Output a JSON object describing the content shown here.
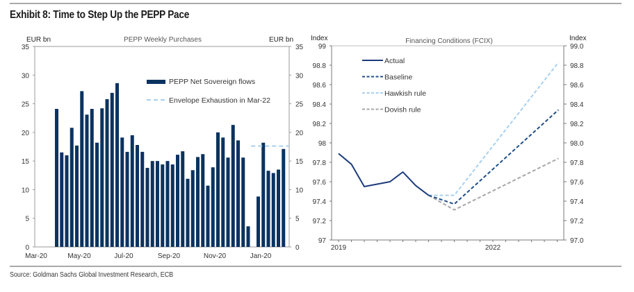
{
  "exhibit": {
    "title": "Exhibit 8: Time to Step Up the PEPP Pace",
    "source": "Source: Goldman Sachs Global Investment Research, ECB"
  },
  "chart_data": [
    {
      "type": "bar",
      "title": "PEPP Weekly Purchases",
      "ylabel_left": "EUR bn",
      "ylabel_right": "EUR bn",
      "ylim": [
        0,
        35
      ],
      "yticks": [
        "0",
        "5",
        "10",
        "15",
        "20",
        "25",
        "30",
        "35"
      ],
      "yticks_right": [
        "0",
        "5",
        "10",
        "15",
        "20",
        "25",
        "30",
        "35"
      ],
      "xtick_labels": [
        "Mar-20",
        "May-20",
        "Jul-20",
        "Sep-20",
        "Nov-20",
        "Jan-20"
      ],
      "grid": false,
      "legend_position": "top-center",
      "series": [
        {
          "name": "PEPP Net Sovereign flows",
          "color": "#0b3360",
          "values": [
            24.1,
            16.5,
            16.0,
            20.8,
            17.7,
            27.2,
            23.1,
            24.1,
            18.2,
            24.2,
            25.8,
            26.9,
            28.6,
            19.1,
            16.6,
            19.5,
            17.8,
            16.6,
            13.8,
            15.0,
            15.0,
            14.4,
            15.0,
            14.4,
            16.1,
            16.7,
            11.9,
            13.4,
            15.7,
            16.2,
            10.7,
            13.9,
            20.0,
            19.1,
            15.6,
            21.3,
            18.6,
            15.6,
            3.6,
            null,
            8.8,
            18.2,
            13.3,
            12.9,
            13.5,
            17.1
          ]
        },
        {
          "name": "Envelope Exhaustion in Mar-22",
          "color": "#a8d0ee",
          "style": "dashed",
          "value": 17.6
        }
      ]
    },
    {
      "type": "line",
      "title": "Financing Conditions (FCIX)",
      "ylabel_left": "Index",
      "ylabel_right": "Index",
      "ylim": [
        97,
        99
      ],
      "yticks": [
        "97",
        "97.2",
        "97.4",
        "97.6",
        "97.8",
        "98",
        "98.2",
        "98.4",
        "98.6",
        "98.8",
        "99"
      ],
      "yticks_right": [
        "97.0",
        "97.2",
        "97.4",
        "97.6",
        "97.8",
        "98.0",
        "98.2",
        "98.4",
        "98.6",
        "98.8",
        "99.0"
      ],
      "xtick_labels": [
        "2019",
        "2022"
      ],
      "x_unit": "quarters since 2019Q1",
      "xlim": [
        -0.2,
        17.6
      ],
      "xtick_positions": [
        0,
        12
      ],
      "grid": false,
      "legend_position": "top-left",
      "series": [
        {
          "name": "Actual",
          "color": "#1c3a7a",
          "style": "solid",
          "x": [
            0,
            1,
            2,
            4,
            5,
            6,
            7
          ],
          "y": [
            97.89,
            97.78,
            97.55,
            97.6,
            97.7,
            97.56,
            97.46
          ]
        },
        {
          "name": "Baseline",
          "color": "#1f4e86",
          "style": "dashed",
          "x": [
            7,
            9,
            17.1
          ],
          "y": [
            97.46,
            97.37,
            98.34
          ]
        },
        {
          "name": "Hawkish rule",
          "color": "#a8d0ee",
          "style": "dashed",
          "x": [
            7,
            9,
            17.1
          ],
          "y": [
            97.46,
            97.46,
            98.83
          ]
        },
        {
          "name": "Dovish rule",
          "color": "#a6a6a6",
          "style": "dashed",
          "x": [
            7,
            9,
            17.1
          ],
          "y": [
            97.46,
            97.31,
            97.84
          ]
        }
      ]
    }
  ]
}
